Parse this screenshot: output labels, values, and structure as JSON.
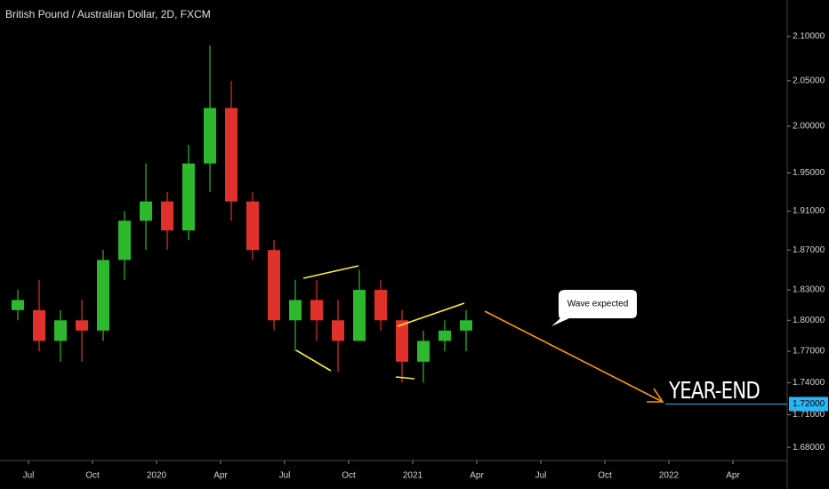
{
  "chart_data": {
    "type": "candlestick",
    "title": "British Pound / Australian Dollar, 2D, FXCM",
    "log_scale": true,
    "up_color": "#2eb82e",
    "down_color": "#e0312b",
    "x": [
      "2019-06",
      "2019-07",
      "2019-08",
      "2019-09",
      "2019-10",
      "2019-11",
      "2019-12",
      "2020-01",
      "2020-02",
      "2020-03",
      "2020-04",
      "2020-05",
      "2020-06",
      "2020-07",
      "2020-08",
      "2020-09",
      "2020-10",
      "2020-11",
      "2020-12",
      "2021-01",
      "2021-02",
      "2021-03"
    ],
    "open": [
      1.81,
      1.81,
      1.78,
      1.8,
      1.79,
      1.86,
      1.9,
      1.92,
      1.89,
      1.96,
      2.02,
      1.92,
      1.87,
      1.8,
      1.82,
      1.8,
      1.78,
      1.83,
      1.8,
      1.76,
      1.78,
      1.79
    ],
    "high": [
      1.83,
      1.84,
      1.81,
      1.82,
      1.87,
      1.91,
      1.96,
      1.93,
      1.98,
      2.09,
      2.05,
      1.93,
      1.88,
      1.84,
      1.84,
      1.82,
      1.85,
      1.84,
      1.81,
      1.79,
      1.8,
      1.81
    ],
    "low": [
      1.8,
      1.77,
      1.76,
      1.76,
      1.78,
      1.84,
      1.87,
      1.87,
      1.88,
      1.93,
      1.9,
      1.86,
      1.79,
      1.77,
      1.78,
      1.75,
      1.78,
      1.79,
      1.74,
      1.74,
      1.77,
      1.77
    ],
    "close": [
      1.82,
      1.78,
      1.8,
      1.79,
      1.86,
      1.9,
      1.92,
      1.89,
      1.96,
      2.02,
      1.92,
      1.87,
      1.8,
      1.82,
      1.8,
      1.78,
      1.83,
      1.8,
      1.76,
      1.78,
      1.79,
      1.8
    ],
    "ylim": [
      1.668,
      2.142
    ],
    "yticks": [
      {
        "value": 2.1,
        "label": "2.10000"
      },
      {
        "value": 2.05,
        "label": "2.05000"
      },
      {
        "value": 2.0,
        "label": "2.00000"
      },
      {
        "value": 1.95,
        "label": "1.95000"
      },
      {
        "value": 1.91,
        "label": "1.91000"
      },
      {
        "value": 1.87,
        "label": "1.87000"
      },
      {
        "value": 1.83,
        "label": "1.83000"
      },
      {
        "value": 1.8,
        "label": "1.80000"
      },
      {
        "value": 1.77,
        "label": "1.77000"
      },
      {
        "value": 1.74,
        "label": "1.74000"
      },
      {
        "value": 1.71,
        "label": "1.71000"
      },
      {
        "value": 1.68,
        "label": "1.68000"
      }
    ],
    "xticks": [
      {
        "value": "2019-07",
        "label": "Jul"
      },
      {
        "value": "2019-10",
        "label": "Oct"
      },
      {
        "value": "2020-01",
        "label": "2020"
      },
      {
        "value": "2020-04",
        "label": "Apr"
      },
      {
        "value": "2020-07",
        "label": "Jul"
      },
      {
        "value": "2020-10",
        "label": "Oct"
      },
      {
        "value": "2021-01",
        "label": "2021"
      },
      {
        "value": "2021-04",
        "label": "Apr"
      },
      {
        "value": "2021-07",
        "label": "Jul"
      },
      {
        "value": "2021-10",
        "label": "Oct"
      },
      {
        "value": "2022-01",
        "label": "2022"
      },
      {
        "value": "2022-04",
        "label": "Apr"
      }
    ],
    "hline": {
      "value": 1.72,
      "label": "1.72000",
      "color": "#29b6f6"
    },
    "annotations": [
      "Wave expected",
      "YEAR-END"
    ]
  }
}
